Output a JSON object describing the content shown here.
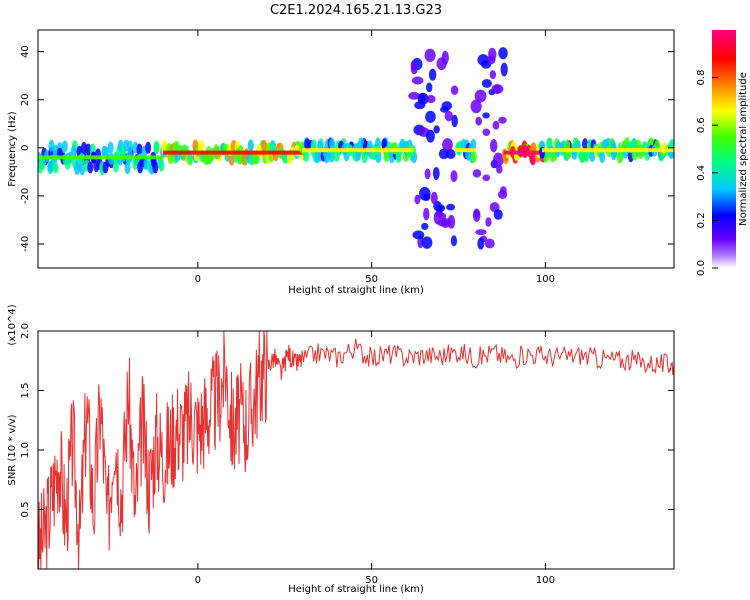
{
  "figure": {
    "title": "C2E1.2024.165.21.13.G23"
  },
  "chart_data": [
    {
      "type": "heatmap",
      "xlabel": "Height of straight line (km)",
      "ylabel": "Frequency (Hz)",
      "xlim": [
        -46,
        137
      ],
      "ylim": [
        -50,
        49
      ],
      "x_ticks": [
        0,
        50,
        100
      ],
      "x_tick_labels": [
        "0",
        "50",
        "100"
      ],
      "y_ticks": [
        -40,
        -20,
        0,
        20,
        40
      ],
      "y_tick_labels": [
        "-40",
        "-20",
        "0",
        "20",
        "40"
      ],
      "grid": false,
      "colorbar": {
        "label": "Normalized spectral amplitude",
        "range": [
          0,
          1
        ],
        "ticks": [
          0,
          0.2,
          0.4,
          0.6,
          0.8
        ],
        "tick_labels": [
          "0.0",
          "0.2",
          "0.4",
          "0.6",
          "0.8"
        ],
        "colors": [
          "#ffffff",
          "#b080ff",
          "#6a00ff",
          "#0000ff",
          "#00c8ff",
          "#00ff80",
          "#40ff00",
          "#ffff00",
          "#ff8000",
          "#ff0000",
          "#ff0080"
        ],
        "placement": "right"
      },
      "bands": [
        {
          "x_start": -46,
          "x_end": -10,
          "freq_center": -4,
          "freq_halfwidth": 5,
          "amplitude": 0.45
        },
        {
          "x_start": -10,
          "x_end": 30,
          "freq_center": -2,
          "freq_halfwidth": 3,
          "amplitude": 0.7
        },
        {
          "x_start": 30,
          "x_end": 62,
          "freq_center": -1,
          "freq_halfwidth": 3,
          "amplitude": 0.5
        },
        {
          "x_start": 62,
          "x_end": 74,
          "freq_center": 0,
          "freq_halfwidth": 40,
          "amplitude": 0.25
        },
        {
          "x_start": 74,
          "x_end": 80,
          "freq_center": -1,
          "freq_halfwidth": 3,
          "amplitude": 0.5
        },
        {
          "x_start": 80,
          "x_end": 88,
          "freq_center": 0,
          "freq_halfwidth": 40,
          "amplitude": 0.25
        },
        {
          "x_start": 88,
          "x_end": 99,
          "freq_center": -2,
          "freq_halfwidth": 3,
          "amplitude": 0.9
        },
        {
          "x_start": 99,
          "x_end": 137,
          "freq_center": -1,
          "freq_halfwidth": 3,
          "amplitude": 0.55
        }
      ]
    },
    {
      "type": "line",
      "xlabel": "Height of straight line (km)",
      "ylabel": "SNR (10 * v/v)",
      "y_multiplier": "(x10^4)",
      "xlim": [
        -46,
        137
      ],
      "ylim": [
        0,
        20000
      ],
      "x_ticks": [
        0,
        50,
        100
      ],
      "x_tick_labels": [
        "0",
        "50",
        "100"
      ],
      "y_ticks": [
        5000,
        10000,
        15000,
        20000
      ],
      "y_tick_labels": [
        "0.5",
        "1.0",
        "1.5",
        "2.0"
      ],
      "grid": false,
      "series": [
        {
          "color": "#e83030",
          "x": [
            -46,
            -44,
            -42,
            -40,
            -38,
            -36,
            -34,
            -32,
            -30,
            -28,
            -26,
            -24,
            -22,
            -20,
            -18,
            -16,
            -14,
            -12,
            -10,
            -8,
            -6,
            -4,
            -2,
            0,
            2,
            4,
            6,
            8,
            10,
            12,
            14,
            16,
            18,
            20,
            22,
            24,
            26,
            28,
            30,
            35,
            40,
            45,
            50,
            55,
            60,
            65,
            70,
            75,
            80,
            85,
            90,
            95,
            100,
            105,
            110,
            115,
            120,
            125,
            130,
            135,
            137
          ],
          "y": [
            1500,
            3000,
            6000,
            9500,
            4000,
            11000,
            2500,
            13500,
            5000,
            14000,
            3500,
            12000,
            6000,
            15000,
            4500,
            12500,
            7000,
            11000,
            9500,
            10500,
            12000,
            11500,
            13000,
            11800,
            12800,
            13500,
            14500,
            17000,
            11500,
            13000,
            12200,
            14200,
            16300,
            17000,
            17800,
            16500,
            18200,
            17200,
            17600,
            18200,
            17800,
            18600,
            17700,
            18100,
            17800,
            18000,
            17900,
            18300,
            17700,
            18200,
            17600,
            18100,
            17900,
            17800,
            18000,
            17700,
            17600,
            17500,
            17300,
            17200,
            17100
          ]
        }
      ]
    }
  ]
}
